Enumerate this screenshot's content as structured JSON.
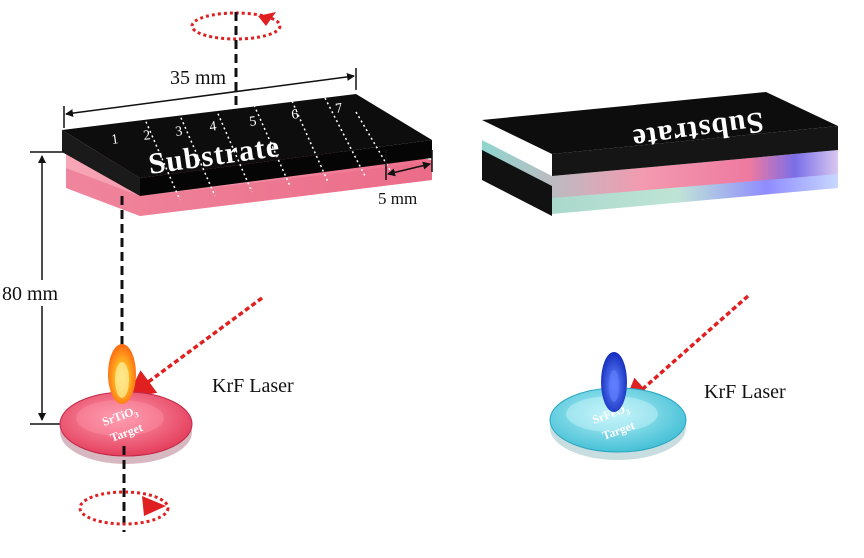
{
  "labels": {
    "width_label": "35 mm",
    "strip_label": "5 mm",
    "distance_label": "80 mm",
    "substrate_left": "Substrate",
    "substrate_right": "Substrate",
    "laser_left": "KrF Laser",
    "laser_right": "KrF Laser",
    "target_left_formula": "SrTiO",
    "target_left_sub": "3",
    "target_left_word": "Target",
    "target_right_formula": "SrFeO",
    "target_right_sub": "3",
    "target_right_word": "Target"
  },
  "strip_numbers": [
    "1",
    "2",
    "3",
    "4",
    "5",
    "6",
    "7"
  ],
  "colors": {
    "substrate_top": "#0d0d0d",
    "film_pink": "#f08aa0",
    "target_pink": "#ee5070",
    "target_cyan": "#5fd0e0",
    "plume_orange": "#ff7a10",
    "plume_blue": "#1c3ad6",
    "laser_red": "#e02020"
  }
}
